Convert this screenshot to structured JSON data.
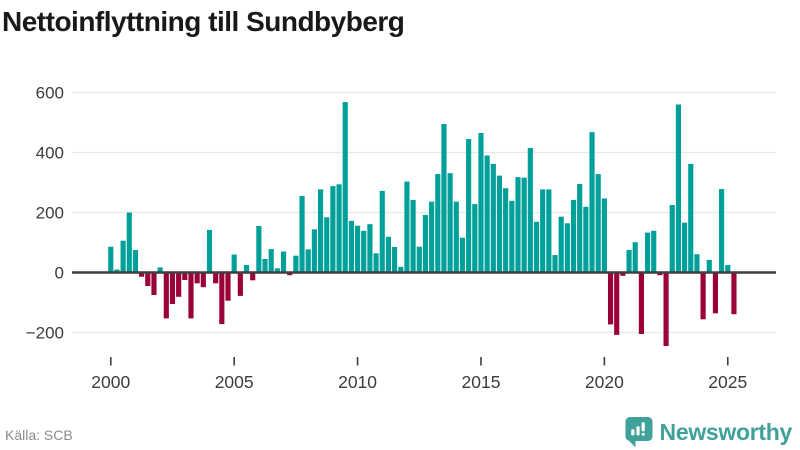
{
  "title": "Nettoinflyttning till Sundbyberg",
  "source": "Källa: SCB",
  "branding": {
    "name": "Newsworthy",
    "icon": "newsworthy-speech-bubble-bar-chart-icon"
  },
  "colors": {
    "positive_bar": "#00a09a",
    "negative_bar": "#9b0039",
    "brand_teal": "#3fa19a",
    "gridline": "#e8e8e8",
    "axis_line": "#3f3f3f",
    "tick_text": "#3c3c3c",
    "title_text": "#191919",
    "source_text": "#8a8a8a"
  },
  "chart_data": {
    "type": "bar",
    "title": "Nettoinflyttning till Sundbyberg",
    "xlabel": "",
    "ylabel": "",
    "frequency": "quarterly",
    "x_start": {
      "year": 2000,
      "quarter": 1
    },
    "x_end": {
      "year": 2025,
      "quarter": 2
    },
    "values": [
      86,
      10,
      106,
      200,
      75,
      -14,
      -45,
      -75,
      17,
      -153,
      -105,
      -81,
      -25,
      -153,
      -36,
      -49,
      142,
      -36,
      -172,
      -94,
      60,
      -78,
      25,
      -26,
      155,
      45,
      78,
      14,
      70,
      -9,
      56,
      255,
      77,
      144,
      277,
      184,
      288,
      294,
      568,
      172,
      156,
      139,
      161,
      64,
      272,
      119,
      85,
      19,
      303,
      242,
      86,
      192,
      236,
      328,
      495,
      331,
      236,
      116,
      445,
      228,
      465,
      390,
      362,
      323,
      281,
      239,
      318,
      316,
      415,
      169,
      277,
      277,
      58,
      186,
      164,
      242,
      295,
      219,
      468,
      328,
      247,
      -173,
      -208,
      -11,
      75,
      101,
      -205,
      133,
      139,
      -9,
      -245,
      225,
      560,
      166,
      362,
      61,
      -156,
      42,
      -136,
      278,
      25,
      -139
    ],
    "x_tick_labels": [
      "2000",
      "2005",
      "2010",
      "2015",
      "2020",
      "2025"
    ],
    "x_tick_every_n_points": 20,
    "y_tick_labels": [
      "600",
      "400",
      "200",
      "0",
      "−200"
    ],
    "y_gridline_values": [
      600,
      400,
      200,
      0,
      -200
    ],
    "ylim": [
      -260,
      640
    ],
    "grid": "horizontal",
    "legend_position": "none",
    "positive_color": "#00a09a",
    "negative_color": "#9b0039"
  }
}
